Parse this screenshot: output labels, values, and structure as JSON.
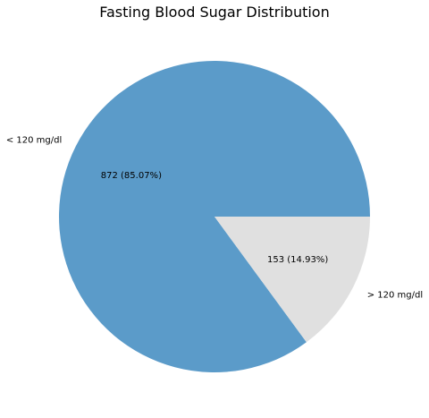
{
  "chart_data": {
    "type": "pie",
    "title": "Fasting Blood Sugar Distribution",
    "slices": [
      {
        "label": "< 120 mg/dl",
        "value": 872,
        "percent_label": "872 (85.07%)",
        "color": "#5b9bc9"
      },
      {
        "label": "> 120 mg/dl",
        "value": 153,
        "percent_label": "153 (14.93%)",
        "color": "#e0e0e0"
      }
    ],
    "start_angle_deg": 0,
    "direction": "counterclockwise"
  }
}
